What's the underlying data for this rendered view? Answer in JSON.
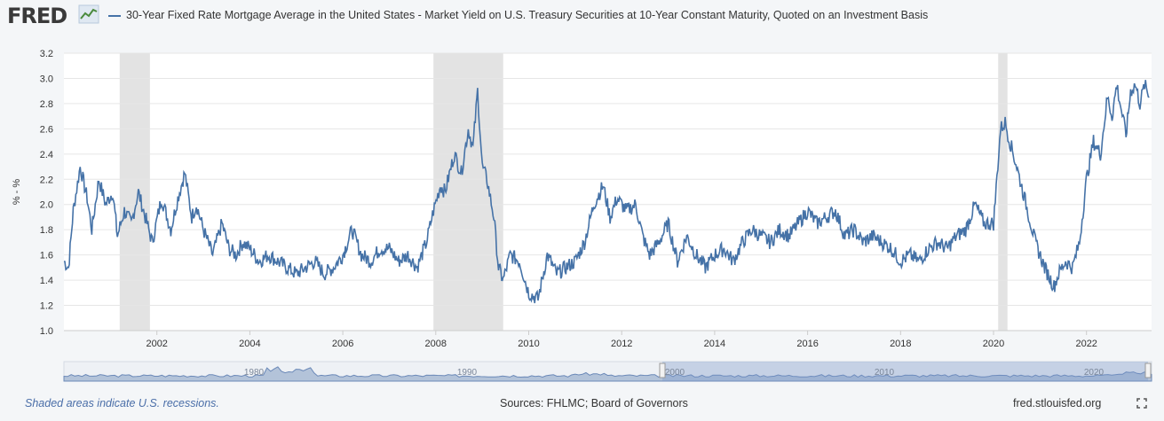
{
  "brand": {
    "logo_text": "FRED"
  },
  "legend": {
    "series_label": "30-Year Fixed Rate Mortgage Average in the United States - Market Yield on U.S. Treasury Securities at 10-Year Constant Maturity, Quoted on an Investment Basis"
  },
  "footer": {
    "recessions_note": "Shaded areas indicate U.S. recessions.",
    "sources": "Sources: FHLMC; Board of Governors",
    "site": "fred.stlouisfed.org"
  },
  "colors": {
    "series": "#4572a7",
    "recession": "#e3e3e3",
    "grid": "#e6e6e6",
    "navigator_fill": "#c9d6ea",
    "navigator_line": "#6b89b8"
  },
  "chart_data": {
    "type": "line",
    "ylabel": "% - %",
    "xlabel": "",
    "ylim": [
      1.0,
      3.2
    ],
    "yticks": [
      "1.0",
      "1.2",
      "1.4",
      "1.6",
      "1.8",
      "2.0",
      "2.2",
      "2.4",
      "2.6",
      "2.8",
      "3.0",
      "3.2"
    ],
    "xticks": [
      "2002",
      "2004",
      "2006",
      "2008",
      "2010",
      "2012",
      "2014",
      "2016",
      "2018",
      "2020",
      "2022"
    ],
    "navigator_labels": [
      "1980",
      "1990",
      "2000",
      "2010",
      "2020"
    ],
    "recessions": [
      {
        "start": 2001.2,
        "end": 2001.85
      },
      {
        "start": 2007.95,
        "end": 2009.45
      },
      {
        "start": 2020.1,
        "end": 2020.3
      }
    ],
    "series": [
      {
        "x": [
          2000.0,
          2000.1,
          2000.2,
          2000.35,
          2000.5,
          2000.6,
          2000.75,
          2000.9,
          2001.05,
          2001.15,
          2001.3,
          2001.45,
          2001.6,
          2001.75,
          2001.9,
          2002.1,
          2002.3,
          2002.45,
          2002.6,
          2002.75,
          2002.85,
          2003.0,
          2003.2,
          2003.4,
          2003.55,
          2003.7,
          2003.85,
          2004.0,
          2004.2,
          2004.4,
          2004.6,
          2004.8,
          2005.0,
          2005.2,
          2005.4,
          2005.6,
          2005.8,
          2006.0,
          2006.2,
          2006.4,
          2006.6,
          2006.8,
          2007.0,
          2007.2,
          2007.4,
          2007.6,
          2007.8,
          2007.95,
          2008.1,
          2008.2,
          2008.4,
          2008.55,
          2008.7,
          2008.8,
          2008.9,
          2009.0,
          2009.1,
          2009.25,
          2009.35,
          2009.45,
          2009.6,
          2009.8,
          2010.0,
          2010.2,
          2010.4,
          2010.6,
          2010.8,
          2011.0,
          2011.2,
          2011.4,
          2011.6,
          2011.75,
          2011.9,
          2012.1,
          2012.3,
          2012.45,
          2012.6,
          2012.8,
          2013.0,
          2013.2,
          2013.4,
          2013.6,
          2013.8,
          2014.0,
          2014.2,
          2014.4,
          2014.6,
          2014.8,
          2015.0,
          2015.2,
          2015.4,
          2015.6,
          2015.8,
          2016.0,
          2016.2,
          2016.4,
          2016.6,
          2016.8,
          2017.0,
          2017.2,
          2017.4,
          2017.6,
          2017.8,
          2018.0,
          2018.2,
          2018.4,
          2018.6,
          2018.8,
          2019.0,
          2019.2,
          2019.4,
          2019.6,
          2019.8,
          2020.0,
          2020.15,
          2020.25,
          2020.35,
          2020.5,
          2020.7,
          2020.9,
          2021.1,
          2021.3,
          2021.4,
          2021.55,
          2021.7,
          2021.85,
          2022.0,
          2022.15,
          2022.3,
          2022.45,
          2022.55,
          2022.65,
          2022.75,
          2022.85,
          2022.95,
          2023.05,
          2023.15,
          2023.25,
          2023.35
        ],
        "y": [
          1.55,
          1.5,
          1.95,
          2.3,
          2.05,
          1.8,
          2.2,
          2.0,
          2.1,
          1.75,
          1.95,
          1.85,
          2.1,
          1.9,
          1.7,
          2.05,
          1.8,
          2.05,
          2.25,
          1.9,
          2.0,
          1.8,
          1.6,
          1.85,
          1.65,
          1.6,
          1.7,
          1.65,
          1.55,
          1.6,
          1.55,
          1.5,
          1.45,
          1.5,
          1.55,
          1.45,
          1.5,
          1.6,
          1.8,
          1.6,
          1.55,
          1.65,
          1.65,
          1.55,
          1.6,
          1.5,
          1.7,
          1.95,
          2.15,
          2.1,
          2.4,
          2.25,
          2.6,
          2.45,
          2.9,
          2.3,
          2.2,
          1.9,
          1.5,
          1.4,
          1.6,
          1.55,
          1.3,
          1.25,
          1.6,
          1.45,
          1.5,
          1.55,
          1.7,
          2.0,
          2.15,
          1.9,
          2.05,
          1.95,
          2.0,
          1.75,
          1.6,
          1.7,
          1.85,
          1.55,
          1.75,
          1.6,
          1.5,
          1.6,
          1.65,
          1.55,
          1.7,
          1.8,
          1.75,
          1.7,
          1.8,
          1.75,
          1.85,
          1.95,
          1.85,
          1.9,
          1.95,
          1.75,
          1.8,
          1.7,
          1.75,
          1.7,
          1.65,
          1.55,
          1.6,
          1.55,
          1.65,
          1.7,
          1.65,
          1.75,
          1.8,
          2.0,
          1.85,
          1.85,
          2.6,
          2.65,
          2.5,
          2.3,
          2.0,
          1.7,
          1.5,
          1.35,
          1.45,
          1.55,
          1.5,
          1.7,
          2.2,
          2.5,
          2.4,
          2.85,
          2.7,
          2.95,
          2.75,
          2.55,
          2.9,
          2.95,
          2.8,
          2.95,
          2.85
        ]
      }
    ]
  }
}
